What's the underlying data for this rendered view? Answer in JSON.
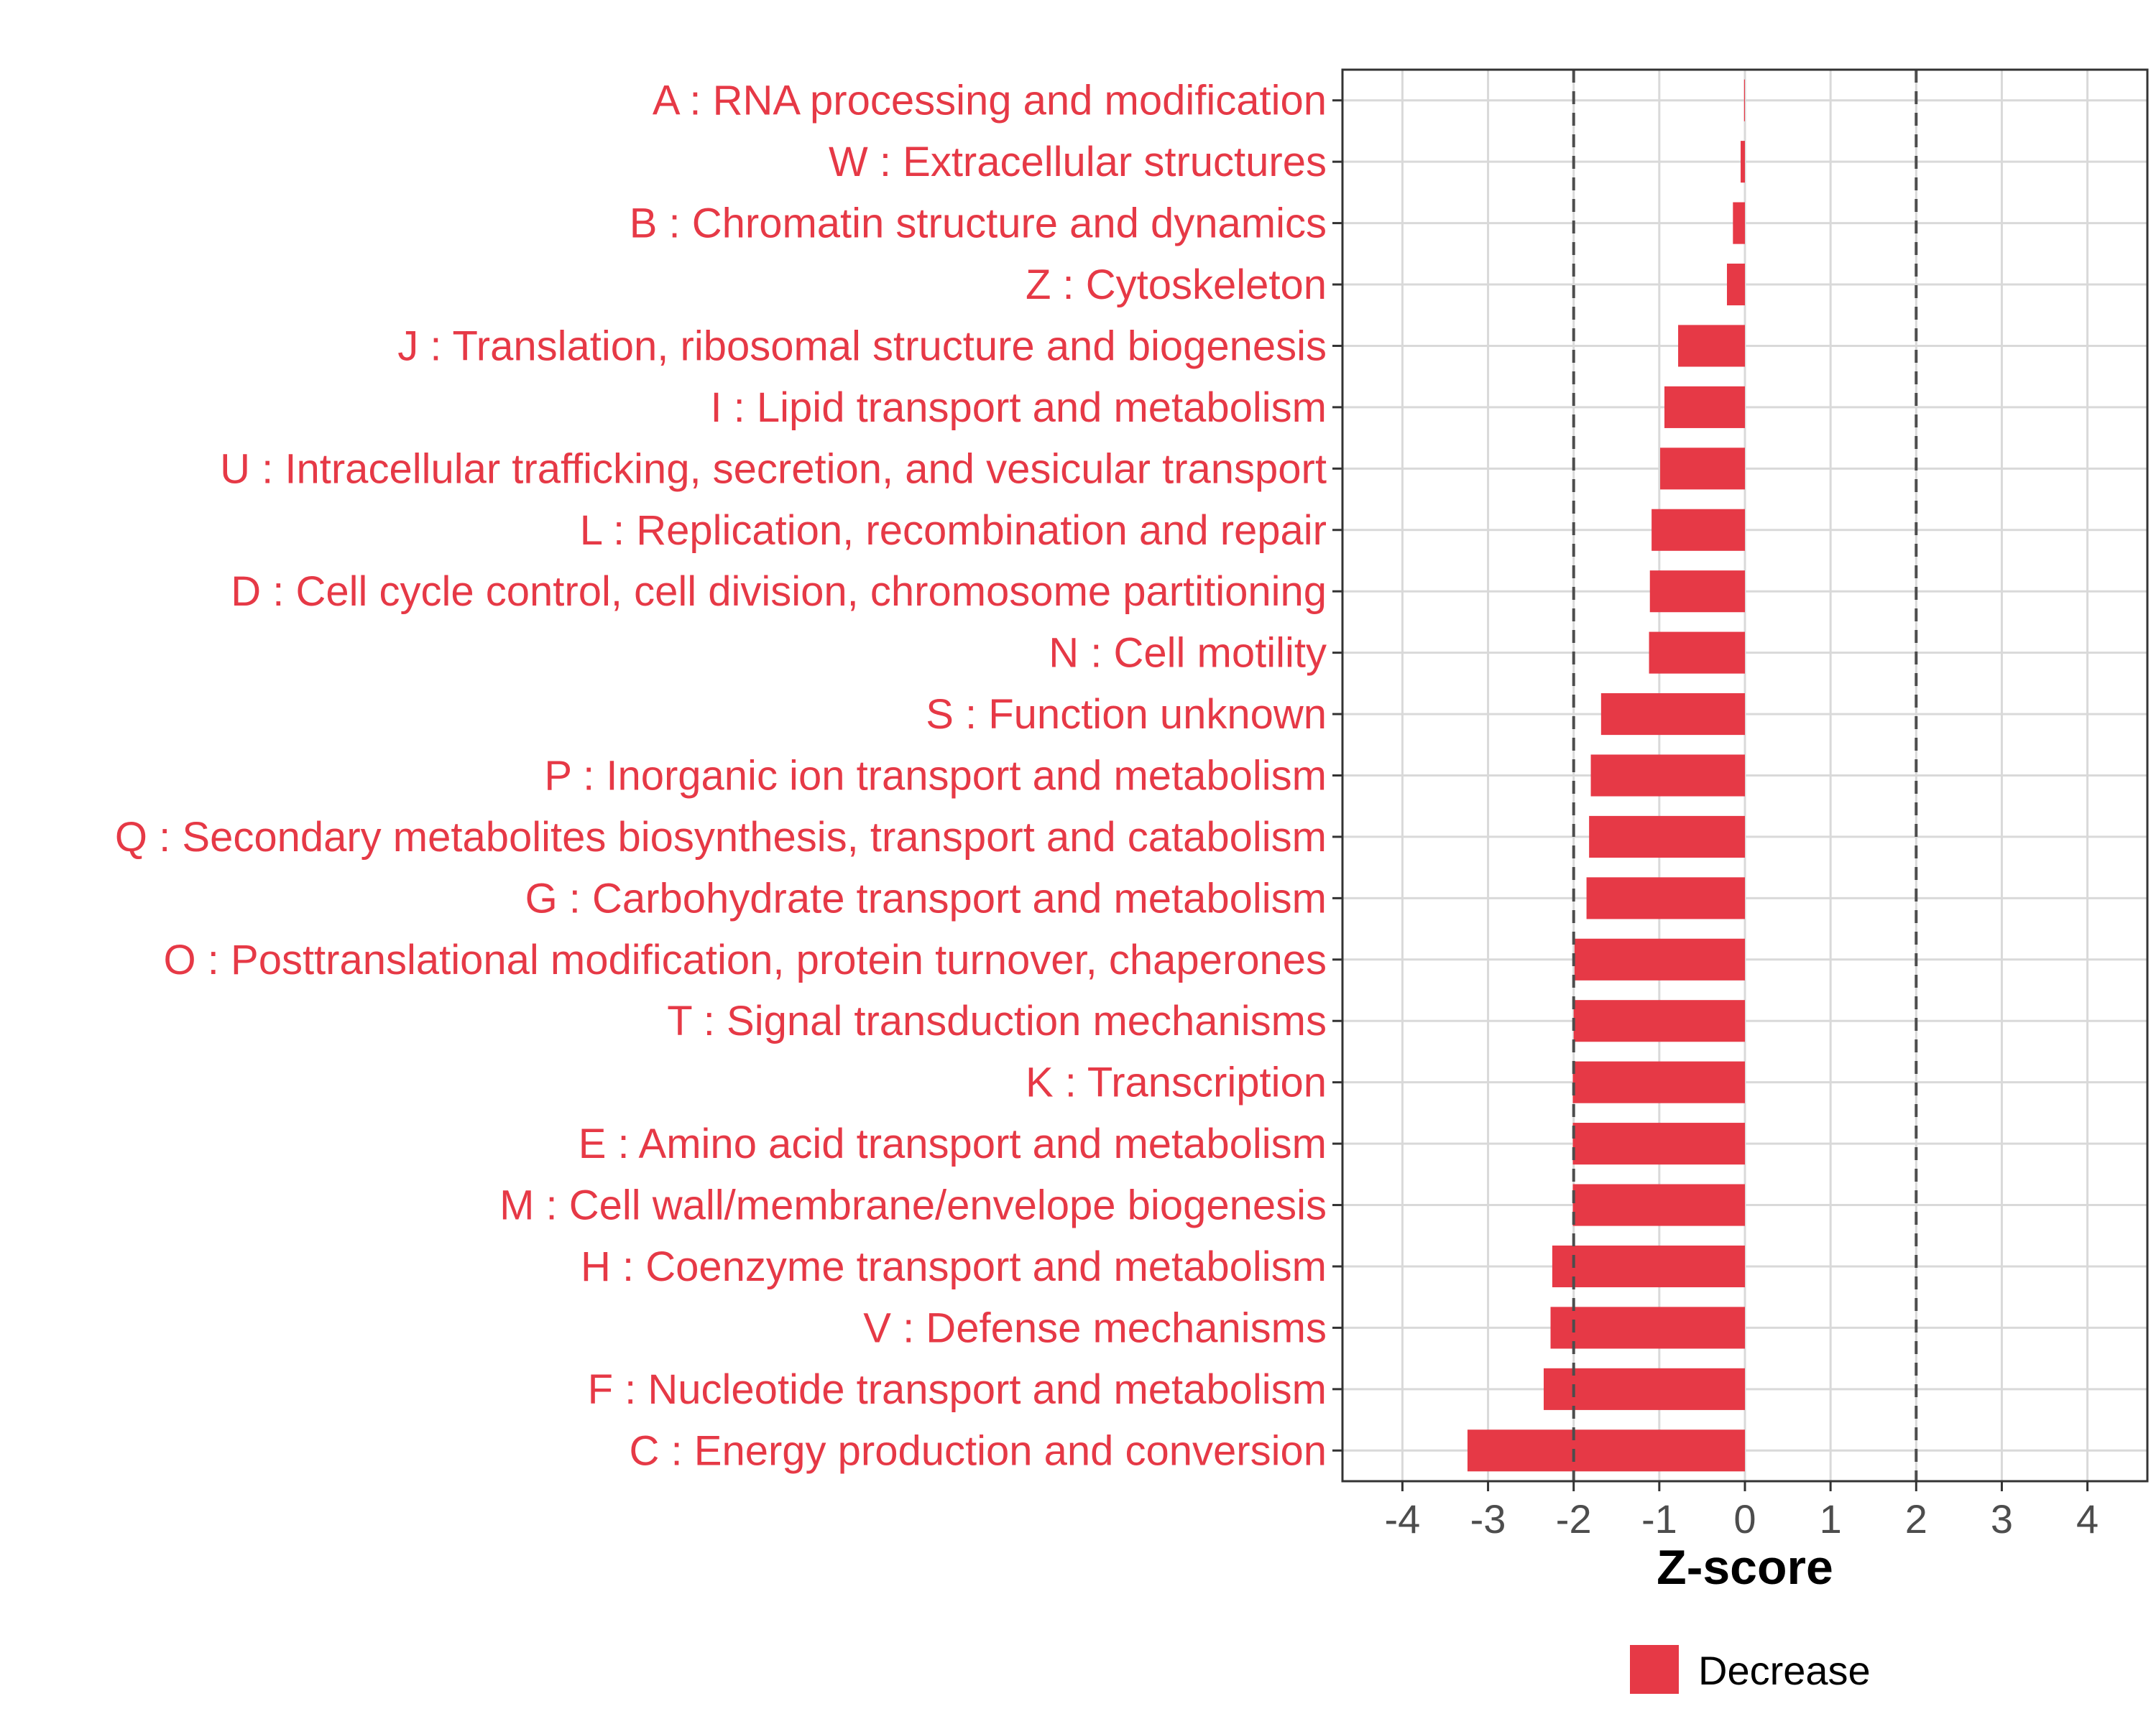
{
  "chart_data": {
    "type": "bar",
    "orientation": "horizontal",
    "xlabel": "Z-score",
    "ylabel": "",
    "xlim": [
      -4.7,
      4.7
    ],
    "xticks": [
      -4,
      -3,
      -2,
      -1,
      0,
      1,
      2,
      3,
      4
    ],
    "reference_lines": [
      -2,
      2
    ],
    "grid": true,
    "legend_position": "bottom",
    "colors": {
      "bar": "#e63946",
      "label": "#e63946",
      "grid": "#d9d9d9",
      "refline": "#4d4d4d"
    },
    "series": [
      {
        "name": "Decrease",
        "categories": [
          "A : RNA processing and modification",
          "W : Extracellular structures",
          "B : Chromatin structure and dynamics",
          "Z : Cytoskeleton",
          "J : Translation, ribosomal structure and biogenesis",
          "I : Lipid transport and metabolism",
          "U : Intracellular trafficking, secretion, and vesicular transport",
          "L : Replication, recombination and repair",
          "D : Cell cycle control, cell division, chromosome partitioning",
          "N : Cell motility",
          "S : Function unknown",
          "P : Inorganic ion transport and metabolism",
          "Q : Secondary metabolites biosynthesis, transport and catabolism",
          "G : Carbohydrate transport and metabolism",
          "O : Posttranslational modification, protein turnover, chaperones",
          "T : Signal transduction mechanisms",
          "K : Transcription",
          "E : Amino acid transport and metabolism",
          "M : Cell wall/membrane/envelope biogenesis",
          "H : Coenzyme transport and metabolism",
          "V : Defense mechanisms",
          "F : Nucleotide transport and metabolism",
          "C : Energy production and conversion"
        ],
        "values": [
          -0.01,
          -0.05,
          -0.14,
          -0.21,
          -0.78,
          -0.94,
          -0.99,
          -1.09,
          -1.11,
          -1.12,
          -1.68,
          -1.8,
          -1.82,
          -1.85,
          -1.99,
          -2.0,
          -2.01,
          -2.01,
          -2.01,
          -2.25,
          -2.27,
          -2.35,
          -3.24
        ]
      }
    ]
  }
}
